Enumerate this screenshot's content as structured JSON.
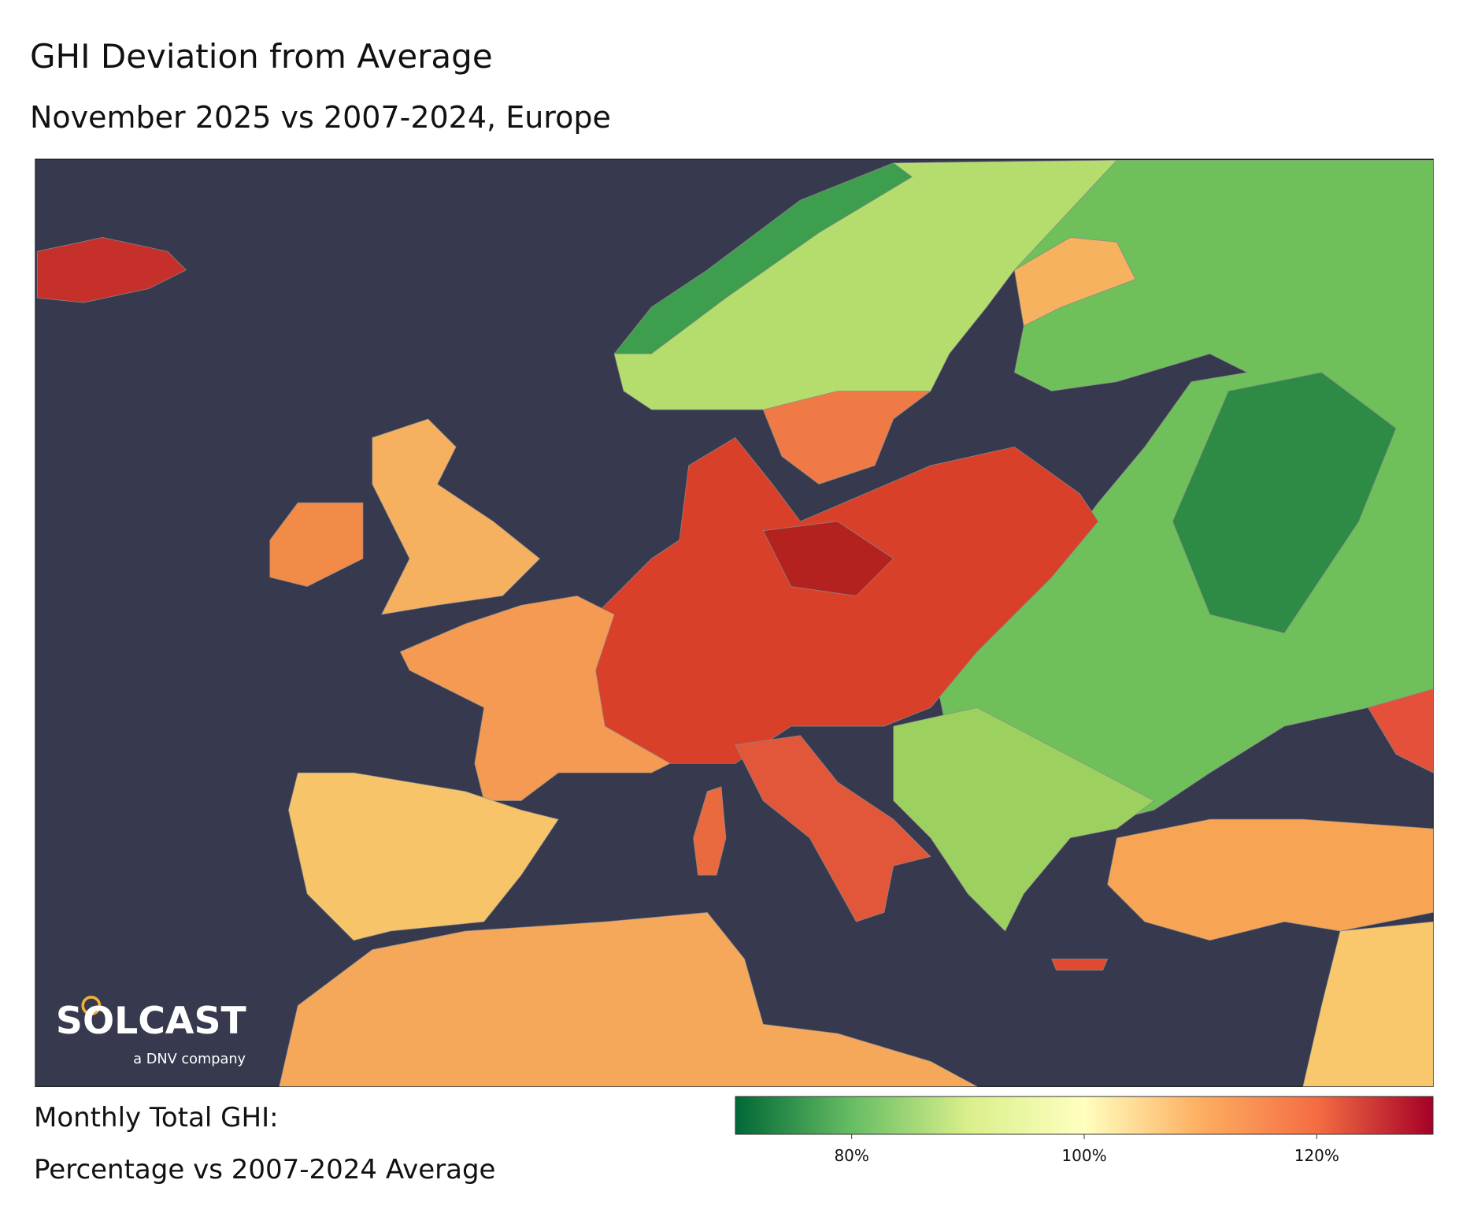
{
  "header": {
    "title": "GHI Deviation from Average",
    "subtitle": "November 2025 vs 2007-2024, Europe"
  },
  "logo": {
    "name": "SOLCAST",
    "tagline": "a DNV company"
  },
  "legend": {
    "title_lines": [
      "Monthly Total GHI:",
      "Percentage vs 2007-2024 Average"
    ],
    "colorbar": {
      "lim": [
        70,
        130
      ],
      "ticks": [
        {
          "value": 80,
          "label": "80%"
        },
        {
          "value": 100,
          "label": "100%"
        },
        {
          "value": 120,
          "label": "120%"
        }
      ],
      "colormap": [
        "#006837",
        "#66bd63",
        "#d9ef8b",
        "#ffffbf",
        "#fdae61",
        "#f46d43",
        "#a50026"
      ]
    }
  }
}
